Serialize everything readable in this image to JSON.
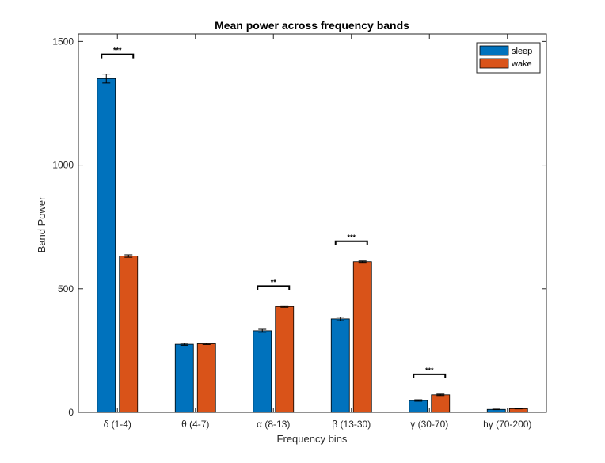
{
  "chart_data": {
    "type": "bar",
    "title": "Mean power across frequency bands",
    "xlabel": "Frequency bins",
    "ylabel": "Band Power",
    "ylim": [
      0,
      1530
    ],
    "yticks": [
      0,
      500,
      1000,
      1500
    ],
    "categories": [
      "δ (1-4)",
      "θ (4-7)",
      "α (8-13)",
      "β (13-30)",
      "γ (30-70)",
      "hγ (70-200)"
    ],
    "series": [
      {
        "name": "sleep",
        "color": "#0072BD",
        "values": [
          1350,
          275,
          330,
          378,
          48,
          12
        ],
        "errors": [
          18,
          4,
          6,
          7,
          3,
          1
        ]
      },
      {
        "name": "wake",
        "color": "#D95319",
        "values": [
          632,
          277,
          428,
          609,
          71,
          15
        ],
        "errors": [
          5,
          3,
          3,
          3,
          3,
          1
        ]
      }
    ],
    "significance": [
      {
        "category_index": 0,
        "label": "***"
      },
      {
        "category_index": 2,
        "label": "**"
      },
      {
        "category_index": 3,
        "label": "***"
      },
      {
        "category_index": 4,
        "label": "***"
      }
    ],
    "legend_position": "top-right",
    "grid": false
  }
}
